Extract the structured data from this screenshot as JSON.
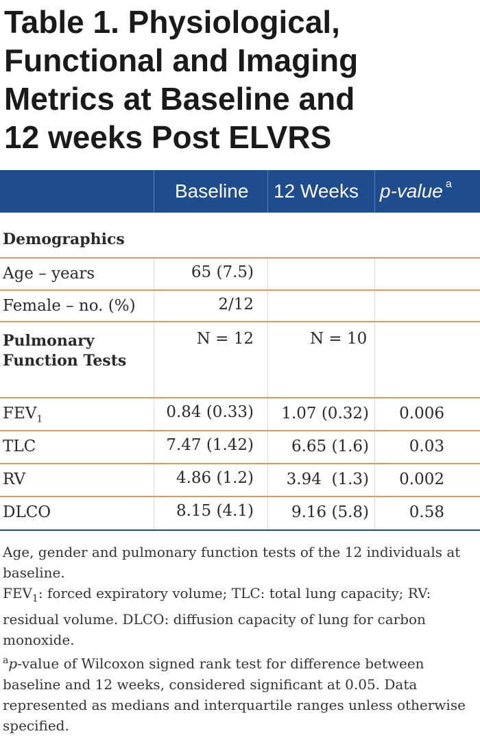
{
  "title": {
    "line1": "Table 1. Physiological,",
    "line2": "Functional and Imaging",
    "line3": "Metrics at Baseline and",
    "line4": "12 weeks Post ELVRS"
  },
  "header": {
    "col_baseline": "Baseline",
    "col_12w": "12 Weeks",
    "col_p": "p-value",
    "col_p_sup": "a"
  },
  "sections": {
    "demographics": "Demographics"
  },
  "rows": {
    "age": {
      "label": "Age – years",
      "baseline": "65 (7.5)",
      "w12": "",
      "p": ""
    },
    "female": {
      "label": "Female – no. (%)",
      "baseline": "2/12",
      "w12": "",
      "p": ""
    },
    "pft": {
      "label": "Pulmonary Function Tests",
      "baseline": "N = 12",
      "w12": "N = 10",
      "p": ""
    },
    "fev1": {
      "label": "FEV",
      "label_sub": "1",
      "baseline": "0.84 (0.33)",
      "w12": "1.07 (0.32)",
      "p": "0.006"
    },
    "tlc": {
      "label": "TLC",
      "baseline": "7.47 (1.42)",
      "w12": "6.65 (1.6)",
      "p": "0.03"
    },
    "rv": {
      "label": "RV",
      "baseline": "4.86 (1.2)",
      "w12": "3.94  (1.3)",
      "p": "0.002"
    },
    "dlco": {
      "label": "DLCO",
      "baseline": "8.15 (4.1)",
      "w12": "9.16 (5.8)",
      "p": "0.58"
    }
  },
  "footnote": {
    "line1": "Age, gender and pulmonary function tests of the 12 individuals at baseline.",
    "abbr_fev": "FEV",
    "abbr_sub": "1",
    "abbr_rest": ": forced expiratory volume; TLC: total lung capacity; RV: residual volume. DLCO: diffusion capacity of lung for carbon monoxide.",
    "sup": "a",
    "pval_italic": "p",
    "pval_rest": "-value of Wilcoxon signed rank test for difference between baseline and 12 weeks, considered significant at 0.05. Data represented as medians and interquartile ranges unless otherwise specified."
  }
}
